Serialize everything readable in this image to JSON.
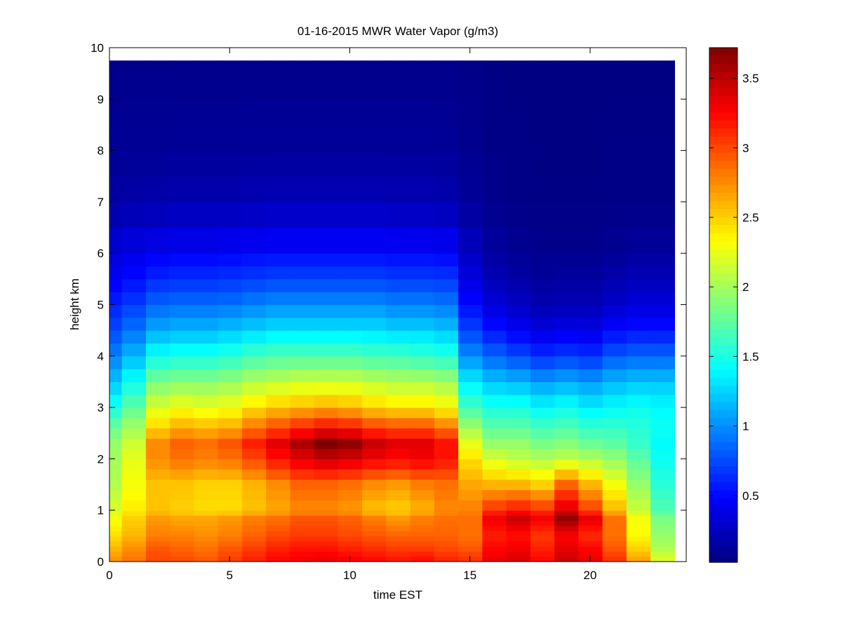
{
  "chart_data": {
    "type": "heatmap",
    "title": "01-16-2015 MWR Water Vapor (g/m3)",
    "xlabel": "time EST",
    "ylabel": "height km",
    "xlim": [
      0,
      24
    ],
    "ylim": [
      0,
      10
    ],
    "x_ticks": [
      "0",
      "5",
      "10",
      "15",
      "20"
    ],
    "y_ticks": [
      "0",
      "1",
      "2",
      "3",
      "4",
      "5",
      "6",
      "7",
      "8",
      "9",
      "10"
    ],
    "colorbar": {
      "colormap": "jet",
      "range": [
        0.02,
        3.72
      ],
      "ticks": [
        "0.5",
        "1",
        "1.5",
        "2",
        "2.5",
        "3",
        "3.5"
      ]
    },
    "time_hours": [
      0,
      1,
      2,
      3,
      4,
      5,
      6,
      7,
      8,
      9,
      10,
      11,
      12,
      13,
      14,
      15,
      16,
      17,
      18,
      19,
      20,
      21,
      22,
      23
    ],
    "height_km": [
      0,
      0.1,
      0.2,
      0.3,
      0.4,
      0.5,
      0.6,
      0.7,
      0.8,
      0.9,
      1.0,
      1.2,
      1.4,
      1.6,
      1.8,
      2.0,
      2.2,
      2.4,
      2.6,
      2.8,
      3.0,
      3.25,
      3.5,
      3.75,
      4.0,
      4.25,
      4.5,
      4.75,
      5.0,
      5.25,
      5.5,
      5.75,
      6.0,
      6.5,
      7.0,
      7.5,
      8.0,
      8.5,
      9.0,
      9.5
    ],
    "water_vapor_profiles": [
      [
        2.75,
        2.6,
        2.45,
        2.3,
        2.2,
        2.05,
        2.0,
        1.95,
        1.8,
        1.5,
        1.2,
        0.95,
        0.75,
        0.6,
        0.45,
        0.35,
        0.25,
        0.15,
        0.1,
        0.06
      ],
      [
        2.85,
        2.75,
        2.6,
        2.5,
        2.4,
        2.3,
        2.25,
        2.15,
        2.0,
        1.75,
        1.45,
        1.15,
        0.9,
        0.7,
        0.52,
        0.4,
        0.28,
        0.17,
        0.1,
        0.06
      ],
      [
        3.0,
        2.95,
        2.8,
        2.7,
        2.55,
        2.55,
        2.75,
        2.75,
        2.5,
        2.2,
        1.85,
        1.45,
        1.1,
        0.85,
        0.62,
        0.45,
        0.3,
        0.18,
        0.1,
        0.06
      ],
      [
        3.0,
        2.9,
        2.8,
        2.65,
        2.5,
        2.55,
        2.85,
        2.9,
        2.65,
        2.3,
        1.9,
        1.5,
        1.15,
        0.88,
        0.65,
        0.47,
        0.32,
        0.2,
        0.11,
        0.06
      ],
      [
        2.95,
        2.85,
        2.75,
        2.65,
        2.45,
        2.5,
        2.8,
        2.85,
        2.6,
        2.25,
        1.9,
        1.5,
        1.15,
        0.88,
        0.65,
        0.47,
        0.32,
        0.2,
        0.11,
        0.06
      ],
      [
        3.05,
        2.95,
        2.8,
        2.7,
        2.45,
        2.5,
        2.85,
        2.95,
        2.65,
        2.3,
        1.95,
        1.55,
        1.2,
        0.9,
        0.67,
        0.48,
        0.33,
        0.2,
        0.11,
        0.06
      ],
      [
        3.15,
        3.05,
        2.9,
        2.8,
        2.55,
        2.6,
        3.0,
        3.15,
        2.85,
        2.45,
        2.05,
        1.65,
        1.25,
        0.95,
        0.7,
        0.5,
        0.34,
        0.21,
        0.12,
        0.06
      ],
      [
        3.25,
        3.15,
        3.0,
        2.85,
        2.65,
        2.75,
        3.2,
        3.35,
        3.0,
        2.55,
        2.1,
        1.7,
        1.3,
        1.0,
        0.72,
        0.52,
        0.36,
        0.22,
        0.12,
        0.06
      ],
      [
        3.3,
        3.2,
        3.05,
        2.95,
        2.75,
        2.9,
        3.35,
        3.55,
        3.15,
        2.6,
        2.15,
        1.7,
        1.3,
        1.0,
        0.72,
        0.52,
        0.36,
        0.22,
        0.12,
        0.06
      ],
      [
        3.35,
        3.2,
        3.05,
        2.95,
        2.75,
        2.9,
        3.45,
        3.72,
        3.25,
        2.65,
        2.15,
        1.7,
        1.3,
        1.0,
        0.72,
        0.52,
        0.36,
        0.22,
        0.12,
        0.06
      ],
      [
        3.3,
        3.15,
        3.0,
        2.9,
        2.7,
        2.85,
        3.4,
        3.65,
        3.2,
        2.6,
        2.15,
        1.7,
        1.3,
        1.0,
        0.72,
        0.52,
        0.36,
        0.22,
        0.12,
        0.06
      ],
      [
        3.25,
        3.1,
        2.95,
        2.8,
        2.55,
        2.75,
        3.3,
        3.45,
        3.05,
        2.5,
        2.1,
        1.65,
        1.3,
        1.0,
        0.72,
        0.52,
        0.36,
        0.22,
        0.12,
        0.06
      ],
      [
        3.2,
        3.05,
        2.9,
        2.7,
        2.5,
        2.7,
        3.25,
        3.35,
        3.0,
        2.45,
        2.05,
        1.65,
        1.25,
        0.95,
        0.7,
        0.5,
        0.35,
        0.21,
        0.12,
        0.06
      ],
      [
        3.25,
        3.05,
        2.9,
        2.8,
        2.6,
        2.8,
        3.3,
        3.35,
        3.0,
        2.45,
        2.05,
        1.6,
        1.25,
        0.95,
        0.7,
        0.5,
        0.35,
        0.21,
        0.12,
        0.06
      ],
      [
        3.15,
        3.0,
        2.9,
        2.85,
        2.75,
        2.85,
        3.2,
        3.2,
        2.85,
        2.35,
        2.0,
        1.55,
        1.2,
        0.92,
        0.68,
        0.48,
        0.33,
        0.2,
        0.11,
        0.06
      ],
      [
        3.1,
        2.95,
        2.85,
        2.85,
        2.8,
        2.65,
        2.45,
        2.25,
        2.0,
        1.65,
        1.35,
        1.0,
        0.72,
        0.52,
        0.37,
        0.27,
        0.18,
        0.12,
        0.08,
        0.05
      ],
      [
        3.35,
        3.25,
        3.15,
        3.3,
        3.1,
        2.6,
        2.2,
        1.95,
        1.75,
        1.5,
        1.2,
        0.85,
        0.55,
        0.35,
        0.22,
        0.14,
        0.1,
        0.07,
        0.05,
        0.04
      ],
      [
        3.4,
        3.3,
        3.2,
        3.45,
        3.2,
        2.6,
        2.1,
        1.95,
        1.75,
        1.5,
        1.15,
        0.75,
        0.45,
        0.27,
        0.16,
        0.1,
        0.07,
        0.05,
        0.04,
        0.03
      ],
      [
        3.25,
        3.15,
        3.05,
        3.3,
        3.1,
        2.5,
        2.05,
        1.85,
        1.65,
        1.4,
        1.05,
        0.65,
        0.37,
        0.2,
        0.12,
        0.08,
        0.06,
        0.04,
        0.03,
        0.03
      ],
      [
        3.45,
        3.35,
        3.25,
        3.65,
        3.4,
        2.9,
        2.1,
        1.9,
        1.7,
        1.45,
        1.1,
        0.7,
        0.4,
        0.22,
        0.13,
        0.08,
        0.06,
        0.04,
        0.03,
        0.03
      ],
      [
        3.35,
        3.25,
        3.1,
        3.35,
        3.05,
        2.6,
        2.05,
        1.8,
        1.6,
        1.35,
        1.05,
        0.65,
        0.38,
        0.22,
        0.13,
        0.08,
        0.06,
        0.04,
        0.03,
        0.03
      ],
      [
        3.1,
        2.95,
        2.85,
        2.85,
        2.6,
        2.3,
        1.95,
        1.75,
        1.6,
        1.4,
        1.15,
        0.8,
        0.5,
        0.3,
        0.18,
        0.1,
        0.07,
        0.05,
        0.04,
        0.03
      ],
      [
        2.7,
        2.5,
        2.35,
        2.3,
        2.15,
        1.95,
        1.75,
        1.6,
        1.55,
        1.45,
        1.2,
        0.85,
        0.55,
        0.35,
        0.22,
        0.13,
        0.08,
        0.05,
        0.04,
        0.03
      ],
      [
        2.25,
        2.05,
        1.95,
        1.85,
        1.7,
        1.55,
        1.45,
        1.4,
        1.45,
        1.4,
        1.2,
        0.85,
        0.55,
        0.35,
        0.22,
        0.13,
        0.08,
        0.05,
        0.04,
        0.03
      ]
    ],
    "profile_knot_heights_km": [
      0,
      0.25,
      0.5,
      0.85,
      1.0,
      1.5,
      2.0,
      2.3,
      2.6,
      3.0,
      3.5,
      4.0,
      4.5,
      5.0,
      5.5,
      6.0,
      6.5,
      7.0,
      8.0,
      9.75
    ],
    "grid": false,
    "colorbar_placement": "right"
  }
}
